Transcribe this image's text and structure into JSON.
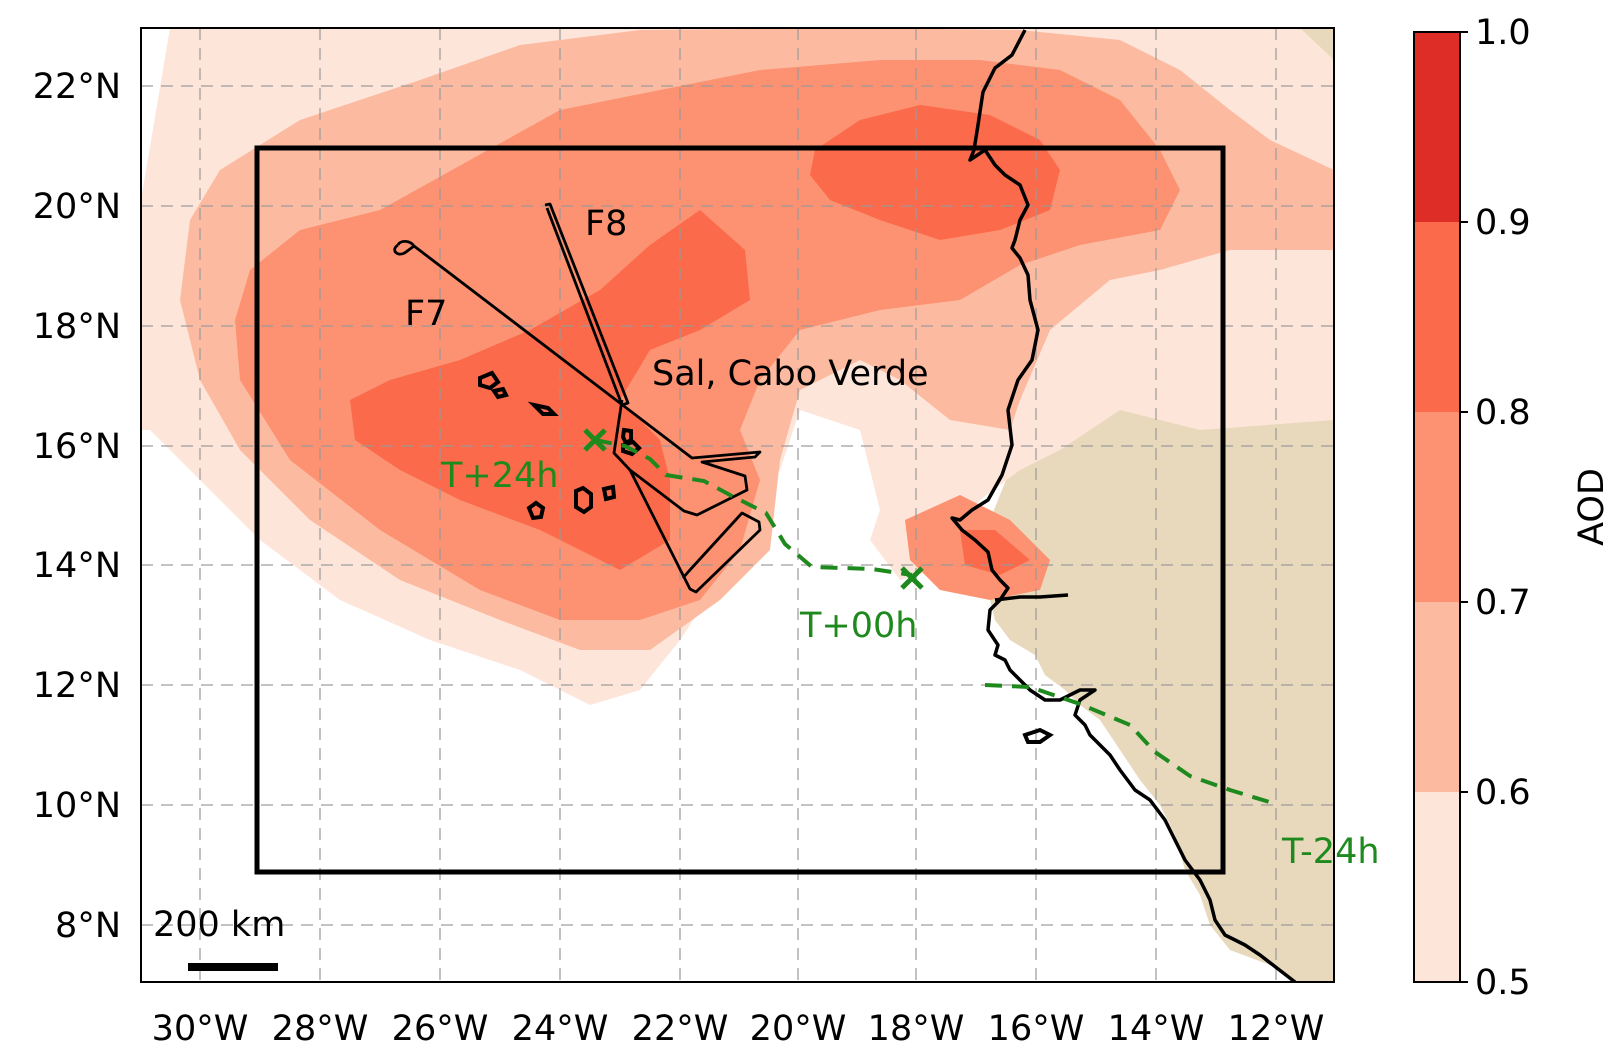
{
  "map": {
    "lon_labels": [
      "30°W",
      "28°W",
      "26°W",
      "24°W",
      "22°W",
      "20°W",
      "18°W",
      "16°W",
      "14°W",
      "12°W"
    ],
    "lat_labels": [
      "8°N",
      "10°N",
      "12°N",
      "14°N",
      "16°N",
      "18°N",
      "20°N",
      "22°N"
    ],
    "labels": {
      "f7": "F7",
      "f8": "F8",
      "location": "Sal, Cabo Verde",
      "t_plus_24": "T+24h",
      "t_00": "T+00h",
      "t_minus_24": "T-24h",
      "scale": "200 km"
    }
  },
  "colorbar": {
    "label": "AOD",
    "ticks": [
      "0.5",
      "0.6",
      "0.7",
      "0.8",
      "0.9",
      "1.0"
    ],
    "colors": [
      "#fee5d9",
      "#fcbba1",
      "#fc9272",
      "#fb6a4a",
      "#de2d26"
    ]
  },
  "colors": {
    "land": "#e8d8bc",
    "trajectory": "#1e8a1e",
    "grid": "#9a9a9a"
  }
}
